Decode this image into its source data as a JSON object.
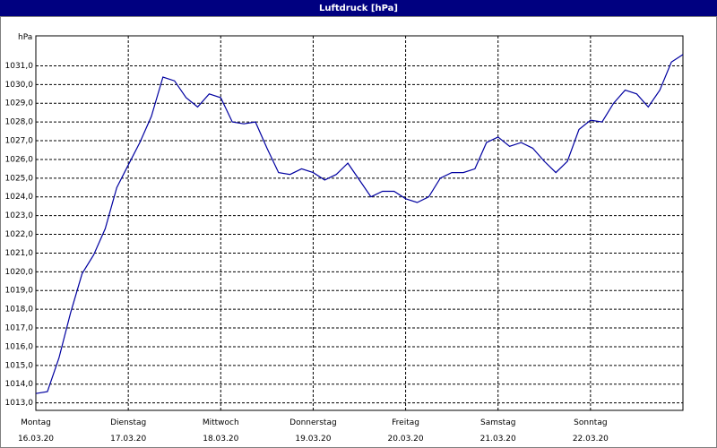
{
  "chart_data": {
    "type": "line",
    "title": "Luftdruck [hPa]",
    "y_label": "hPa",
    "x": [
      "2020-03-16T00:00",
      "2020-03-16T03:00",
      "2020-03-16T06:00",
      "2020-03-16T09:00",
      "2020-03-16T12:00",
      "2020-03-16T15:00",
      "2020-03-16T18:00",
      "2020-03-16T21:00",
      "2020-03-17T00:00",
      "2020-03-17T03:00",
      "2020-03-17T06:00",
      "2020-03-17T09:00",
      "2020-03-17T12:00",
      "2020-03-17T15:00",
      "2020-03-17T18:00",
      "2020-03-17T21:00",
      "2020-03-18T00:00",
      "2020-03-18T03:00",
      "2020-03-18T06:00",
      "2020-03-18T09:00",
      "2020-03-18T12:00",
      "2020-03-18T15:00",
      "2020-03-18T18:00",
      "2020-03-18T21:00",
      "2020-03-19T00:00",
      "2020-03-19T03:00",
      "2020-03-19T06:00",
      "2020-03-19T09:00",
      "2020-03-19T12:00",
      "2020-03-19T15:00",
      "2020-03-19T18:00",
      "2020-03-19T21:00",
      "2020-03-20T00:00",
      "2020-03-20T03:00",
      "2020-03-20T06:00",
      "2020-03-20T09:00",
      "2020-03-20T12:00",
      "2020-03-20T15:00",
      "2020-03-20T18:00",
      "2020-03-20T21:00",
      "2020-03-21T00:00",
      "2020-03-21T03:00",
      "2020-03-21T06:00",
      "2020-03-21T09:00",
      "2020-03-21T12:00",
      "2020-03-21T15:00",
      "2020-03-21T18:00",
      "2020-03-21T21:00",
      "2020-03-22T00:00",
      "2020-03-22T03:00",
      "2020-03-22T06:00",
      "2020-03-22T09:00",
      "2020-03-22T12:00",
      "2020-03-22T15:00",
      "2020-03-22T18:00",
      "2020-03-22T21:00",
      "2020-03-23T00:00"
    ],
    "series": [
      {
        "name": "Luftdruck",
        "color": "#0000a0",
        "values": [
          1013.5,
          1013.6,
          1015.4,
          1017.8,
          1019.9,
          1020.9,
          1022.3,
          1024.5,
          1025.7,
          1026.9,
          1028.3,
          1030.4,
          1030.2,
          1029.3,
          1028.8,
          1029.5,
          1029.3,
          1028.0,
          1027.9,
          1028.0,
          1026.6,
          1025.3,
          1025.2,
          1025.5,
          1025.3,
          1024.9,
          1025.2,
          1025.8,
          1024.9,
          1024.0,
          1024.3,
          1024.3,
          1023.9,
          1023.7,
          1024.0,
          1025.0,
          1025.3,
          1025.3,
          1025.5,
          1026.9,
          1027.2,
          1026.7,
          1026.9,
          1026.6,
          1025.9,
          1025.3,
          1025.9,
          1027.6,
          1028.1,
          1028.0,
          1029.0,
          1029.7,
          1029.5,
          1028.8,
          1029.7,
          1031.2,
          1031.6
        ]
      }
    ],
    "xlim": [
      "2020-03-16T00:00",
      "2020-03-23T00:00"
    ],
    "xticks": [
      {
        "value": "2020-03-16T00:00",
        "label": "Montag",
        "date": "16.03.20"
      },
      {
        "value": "2020-03-17T00:00",
        "label": "Dienstag",
        "date": "17.03.20"
      },
      {
        "value": "2020-03-18T00:00",
        "label": "Mittwoch",
        "date": "18.03.20"
      },
      {
        "value": "2020-03-19T00:00",
        "label": "Donnerstag",
        "date": "19.03.20"
      },
      {
        "value": "2020-03-20T00:00",
        "label": "Freitag",
        "date": "20.03.20"
      },
      {
        "value": "2020-03-21T00:00",
        "label": "Samstag",
        "date": "21.03.20"
      },
      {
        "value": "2020-03-22T00:00",
        "label": "Sonntag",
        "date": "22.03.20"
      }
    ],
    "ylim": [
      1012.6,
      1032.6
    ],
    "yticks": [
      {
        "value": 1013,
        "label": "1013,0"
      },
      {
        "value": 1014,
        "label": "1014,0"
      },
      {
        "value": 1015,
        "label": "1015,0"
      },
      {
        "value": 1016,
        "label": "1016,0"
      },
      {
        "value": 1017,
        "label": "1017,0"
      },
      {
        "value": 1018,
        "label": "1018,0"
      },
      {
        "value": 1019,
        "label": "1019,0"
      },
      {
        "value": 1020,
        "label": "1020,0"
      },
      {
        "value": 1021,
        "label": "1021,0"
      },
      {
        "value": 1022,
        "label": "1022,0"
      },
      {
        "value": 1023,
        "label": "1023,0"
      },
      {
        "value": 1024,
        "label": "1024,0"
      },
      {
        "value": 1025,
        "label": "1025,0"
      },
      {
        "value": 1026,
        "label": "1026,0"
      },
      {
        "value": 1027,
        "label": "1027,0"
      },
      {
        "value": 1028,
        "label": "1028,0"
      },
      {
        "value": 1029,
        "label": "1029,0"
      },
      {
        "value": 1030,
        "label": "1030,0"
      },
      {
        "value": 1031,
        "label": "1031,0"
      }
    ],
    "grid": true
  }
}
